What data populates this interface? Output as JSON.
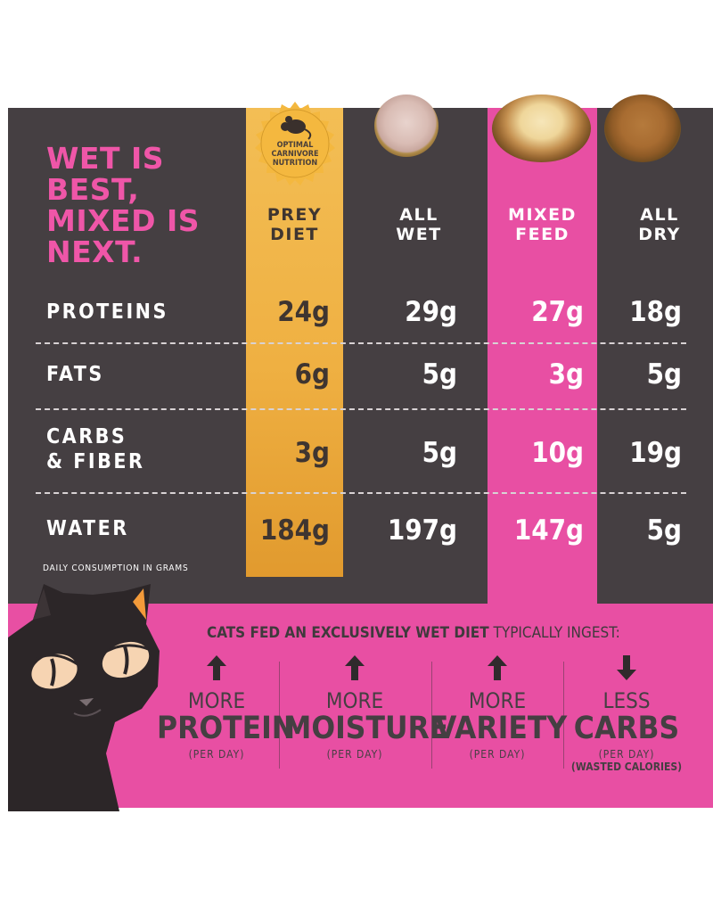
{
  "headline": [
    "WET IS",
    "BEST,",
    "MIXED IS",
    "NEXT."
  ],
  "badge": {
    "lines": [
      "OPTIMAL",
      "CARNIVORE",
      "NUTRITION"
    ],
    "icon": "mouse-icon"
  },
  "columns": [
    {
      "key": "prey",
      "lines": [
        "PREY",
        "DIET"
      ]
    },
    {
      "key": "wet",
      "lines": [
        "ALL",
        "WET"
      ]
    },
    {
      "key": "mixed",
      "lines": [
        "MIXED",
        "FEED"
      ]
    },
    {
      "key": "dry",
      "lines": [
        "ALL",
        "DRY"
      ]
    }
  ],
  "rows": [
    {
      "label": [
        "PROTEINS"
      ],
      "values": [
        "24g",
        "29g",
        "27g",
        "18g"
      ]
    },
    {
      "label": [
        "FATS"
      ],
      "values": [
        "6g",
        "5g",
        "3g",
        "5g"
      ]
    },
    {
      "label": [
        "CARBS",
        "& FIBER"
      ],
      "values": [
        "3g",
        "5g",
        "10g",
        "19g"
      ]
    },
    {
      "label": [
        "WATER"
      ],
      "values": [
        "184g",
        "197g",
        "147g",
        "5g"
      ]
    }
  ],
  "footnote": "DAILY CONSUMPTION IN GRAMS",
  "ingest": {
    "bold": "CATS FED AN EXCLUSIVELY WET DIET",
    "rest": " TYPICALLY INGEST:"
  },
  "benefits": [
    {
      "direction": "up",
      "line1": "MORE",
      "line2": "PROTEIN",
      "line3": "(PER DAY)",
      "line4": ""
    },
    {
      "direction": "up",
      "line1": "MORE",
      "line2": "MOISTURE",
      "line3": "(PER DAY)",
      "line4": ""
    },
    {
      "direction": "up",
      "line1": "MORE",
      "line2": "VARIETY",
      "line3": "(PER DAY)",
      "line4": ""
    },
    {
      "direction": "down",
      "line1": "LESS",
      "line2": "CARBS",
      "line3": "(PER DAY)",
      "line4": "(WASTED CALORIES)"
    }
  ],
  "colors": {
    "panel": "#453f42",
    "pink": "#e84fa3",
    "gold": "#efb042",
    "headline": "#ef56a8"
  }
}
